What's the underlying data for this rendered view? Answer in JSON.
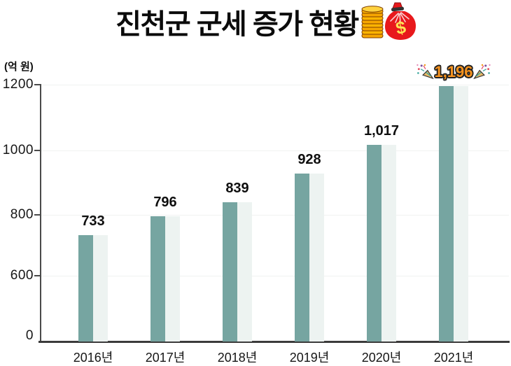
{
  "title": {
    "text": "진천군 군세 증가 현황",
    "icon": "money-bag-and-coin-stack"
  },
  "y_axis": {
    "unit_label": "(억 원)",
    "tick_values": [
      1200,
      1000,
      800,
      600,
      0
    ],
    "tick_labels": [
      "1200",
      "1000",
      "800",
      "600",
      "0"
    ]
  },
  "chart_data": {
    "type": "bar",
    "title": "진천군 군세 증가 현황",
    "categories": [
      "2016년",
      "2017년",
      "2018년",
      "2019년",
      "2020년",
      "2021년"
    ],
    "values": [
      733,
      796,
      839,
      928,
      1017,
      1196
    ],
    "data_labels": [
      "733",
      "796",
      "839",
      "928",
      "1,017",
      "1,196"
    ],
    "ylabel": "(억 원)",
    "ylim": [
      0,
      1200
    ],
    "y_ticks": [
      0,
      600,
      800,
      1000,
      1200
    ],
    "y_axis_note": "scale visually compressed between 0 and 600 (axis break)",
    "grid": "faint horizontal gridlines at y ticks",
    "legend": "none",
    "bar_color": "#76a5a1",
    "bar_shadow_color": "#edf3f1",
    "axis_color": "#3b3b3b",
    "highlight_index": 5,
    "highlight_label_color": "#f5921e",
    "highlight_decoration": "confetti party poppers flanking the value"
  }
}
